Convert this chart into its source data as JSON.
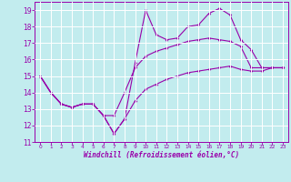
{
  "xlabel": "Windchill (Refroidissement éolien,°C)",
  "xlim": [
    -0.5,
    23.5
  ],
  "ylim": [
    11,
    19.5
  ],
  "xticks": [
    0,
    1,
    2,
    3,
    4,
    5,
    6,
    7,
    8,
    9,
    10,
    11,
    12,
    13,
    14,
    15,
    16,
    17,
    18,
    19,
    20,
    21,
    22,
    23
  ],
  "yticks": [
    11,
    12,
    13,
    14,
    15,
    16,
    17,
    18,
    19
  ],
  "bg_color": "#c2ecee",
  "line_color": "#9900aa",
  "grid_color": "#ffffff",
  "line1_x": [
    0,
    1,
    2,
    3,
    4,
    5,
    6,
    7,
    8,
    9,
    10,
    11,
    12,
    13,
    14,
    15,
    16,
    17,
    18,
    19,
    20,
    21,
    22,
    23
  ],
  "line1_y": [
    15.0,
    14.0,
    13.3,
    13.1,
    13.3,
    13.3,
    12.6,
    11.5,
    12.4,
    15.8,
    19.0,
    17.5,
    17.2,
    17.3,
    18.0,
    18.1,
    18.8,
    19.1,
    18.7,
    17.2,
    16.6,
    15.5,
    15.5,
    15.5
  ],
  "line2_x": [
    0,
    1,
    2,
    3,
    4,
    5,
    6,
    7,
    8,
    9,
    10,
    11,
    12,
    13,
    14,
    15,
    16,
    17,
    18,
    19,
    20,
    21,
    22,
    23
  ],
  "line2_y": [
    15.0,
    14.0,
    13.3,
    13.1,
    13.3,
    13.3,
    12.6,
    12.6,
    14.0,
    15.5,
    16.2,
    16.5,
    16.7,
    16.9,
    17.1,
    17.2,
    17.3,
    17.2,
    17.1,
    16.8,
    15.5,
    15.5,
    15.5,
    15.5
  ],
  "line3_x": [
    0,
    1,
    2,
    3,
    4,
    5,
    6,
    7,
    8,
    9,
    10,
    11,
    12,
    13,
    14,
    15,
    16,
    17,
    18,
    19,
    20,
    21,
    22,
    23
  ],
  "line3_y": [
    15.0,
    14.0,
    13.3,
    13.1,
    13.3,
    13.3,
    12.6,
    11.5,
    12.4,
    13.5,
    14.2,
    14.5,
    14.8,
    15.0,
    15.2,
    15.3,
    15.4,
    15.5,
    15.6,
    15.4,
    15.3,
    15.3,
    15.5,
    15.5
  ]
}
